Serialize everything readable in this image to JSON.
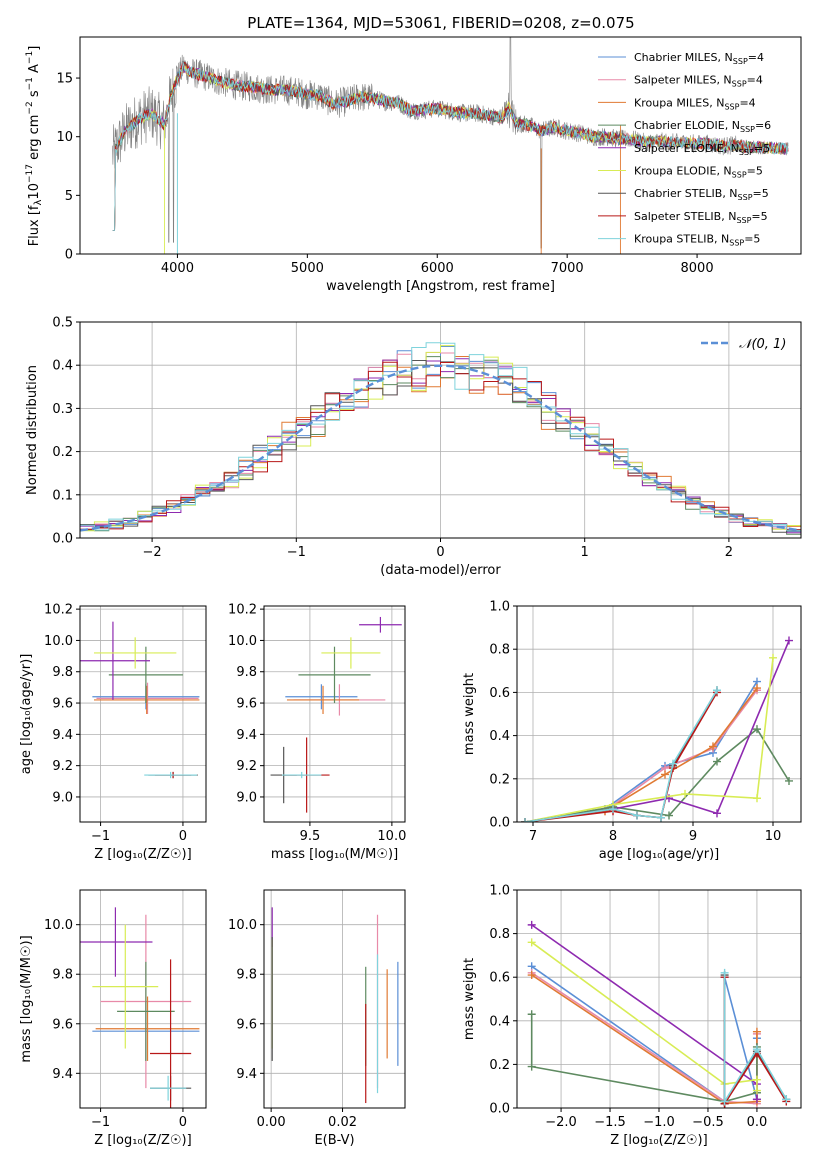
{
  "title": "PLATE=1364, MJD=53061, FIBERID=0208, z=0.075",
  "legend_n_symbol": "N",
  "legend_n_subscript": "SSP",
  "models": [
    {
      "name": "Chabrier MILES",
      "n": "=4",
      "color": "#5b8fd6"
    },
    {
      "name": "Salpeter MILES",
      "n": "=4",
      "color": "#e88aa8"
    },
    {
      "name": "Kroupa MILES",
      "n": "=4",
      "color": "#e07a33"
    },
    {
      "name": "Chabrier ELODIE",
      "n": "=6",
      "color": "#5e8a60"
    },
    {
      "name": "Salpeter ELODIE",
      "n": "=5",
      "color": "#8e2ab0"
    },
    {
      "name": "Kroupa ELODIE",
      "n": "=5",
      "color": "#d8ec55"
    },
    {
      "name": "Chabrier STELIB",
      "n": "=5",
      "color": "#555555"
    },
    {
      "name": "Salpeter STELIB",
      "n": "=5",
      "color": "#b81818"
    },
    {
      "name": "Kroupa STELIB",
      "n": "=5",
      "color": "#7fd3dc"
    }
  ],
  "chart_data": [
    {
      "id": "spectrum",
      "type": "line",
      "xlabel": "wavelength [Angstrom, rest frame]",
      "ylabel_parts": [
        "Flux [f",
        "λ",
        "10",
        "−17",
        " erg cm",
        "−2",
        " s",
        "−1",
        " A",
        "−1",
        "]"
      ],
      "xlim": [
        3250,
        8800
      ],
      "ylim": [
        0,
        18.5
      ],
      "xticks": [
        4000,
        5000,
        6000,
        7000,
        8000
      ],
      "yticks": [
        0,
        5,
        10,
        15
      ],
      "data_color": "#808080",
      "data": {
        "x": [
          3500,
          3600,
          3700,
          3800,
          3900,
          3950,
          4000,
          4050,
          4100,
          4200,
          4300,
          4400,
          4500,
          4600,
          4700,
          4800,
          4900,
          5000,
          5100,
          5200,
          5300,
          5400,
          5500,
          5600,
          5700,
          5800,
          5900,
          6000,
          6100,
          6200,
          6300,
          6400,
          6500,
          6550,
          6600,
          6700,
          6800,
          6900,
          7000,
          7100,
          7200,
          7300,
          7400,
          7500,
          7600,
          7700,
          7800,
          7900,
          8000,
          8100,
          8200,
          8300,
          8400,
          8500,
          8600,
          8700
        ],
        "y": [
          8.5,
          10.5,
          11.5,
          12.0,
          11.0,
          13.5,
          15.0,
          16.0,
          15.5,
          15.2,
          14.8,
          14.5,
          14.3,
          14.2,
          14.0,
          14.0,
          13.9,
          13.6,
          13.5,
          12.8,
          13.0,
          13.4,
          13.3,
          13.0,
          12.9,
          12.2,
          12.3,
          12.4,
          12.2,
          12.0,
          12.0,
          11.8,
          11.6,
          12.5,
          11.2,
          11.0,
          10.5,
          10.8,
          10.5,
          10.3,
          10.0,
          10.0,
          9.8,
          9.8,
          9.5,
          9.6,
          9.5,
          9.5,
          9.4,
          9.4,
          9.2,
          9.3,
          9.1,
          9.1,
          9.0,
          9.0
        ]
      }
    },
    {
      "id": "residuals",
      "type": "line",
      "xlabel": "(data-model)/error",
      "ylabel": "Normed distribution",
      "xlim": [
        -2.5,
        2.5
      ],
      "ylim": [
        0,
        0.5
      ],
      "xticks": [
        -2,
        -1,
        0,
        1,
        2
      ],
      "yticks": [
        0.0,
        0.1,
        0.2,
        0.3,
        0.4,
        0.5
      ],
      "legend": "𝒩(0, 1)",
      "gaussian_color": "#5b8fd6"
    },
    {
      "id": "age-vs-Z",
      "type": "scatter",
      "xlabel": "Z [log₁₀(Z/Z☉)]",
      "ylabel": "age  [log₁₀(age/yr)]",
      "xlim": [
        -1.25,
        0.28
      ],
      "ylim": [
        8.84,
        10.22
      ],
      "xticks": [
        -1,
        0
      ],
      "yticks": [
        9.0,
        9.2,
        9.4,
        9.6,
        9.8,
        10.0,
        10.2
      ],
      "points": [
        {
          "m": 0,
          "x": -0.45,
          "xe": 0.65,
          "y": 9.64,
          "ye": 0.08
        },
        {
          "m": 1,
          "x": -0.43,
          "xe": 0.62,
          "y": 9.63,
          "ye": 0.1
        },
        {
          "m": 2,
          "x": -0.44,
          "xe": 0.64,
          "y": 9.62,
          "ye": 0.09
        },
        {
          "m": 3,
          "x": -0.45,
          "xe": 0.45,
          "y": 9.78,
          "ye": 0.18
        },
        {
          "m": 4,
          "x": -0.85,
          "xe": 0.45,
          "y": 9.87,
          "ye": 0.25
        },
        {
          "m": 5,
          "x": -0.58,
          "xe": 0.5,
          "y": 9.92,
          "ye": 0.1
        },
        {
          "m": 6,
          "x": -0.12,
          "xe": 0.3,
          "y": 9.14,
          "ye": 0.02
        },
        {
          "m": 7,
          "x": -0.12,
          "xe": 0.22,
          "y": 9.14,
          "ye": 0.02
        },
        {
          "m": 8,
          "x": -0.15,
          "xe": 0.32,
          "y": 9.14,
          "ye": 0.02
        }
      ]
    },
    {
      "id": "age-vs-mass",
      "type": "scatter",
      "xlabel": "mass [log₁₀(M/M☉)]",
      "ylabel": "",
      "xlim": [
        9.22,
        10.08
      ],
      "ylim": [
        8.84,
        10.22
      ],
      "xticks": [
        9.5,
        10.0
      ],
      "yticks": [
        9.0,
        9.2,
        9.4,
        9.6,
        9.8,
        10.0,
        10.2
      ],
      "points": [
        {
          "m": 0,
          "x": 9.57,
          "xe": 0.22,
          "y": 9.64,
          "ye": 0.08
        },
        {
          "m": 1,
          "x": 9.68,
          "xe": 0.28,
          "y": 9.62,
          "ye": 0.1
        },
        {
          "m": 2,
          "x": 9.58,
          "xe": 0.22,
          "y": 9.62,
          "ye": 0.09
        },
        {
          "m": 3,
          "x": 9.65,
          "xe": 0.22,
          "y": 9.78,
          "ye": 0.18
        },
        {
          "m": 4,
          "x": 9.93,
          "xe": 0.13,
          "y": 10.1,
          "ye": 0.05
        },
        {
          "m": 5,
          "x": 9.75,
          "xe": 0.18,
          "y": 9.92,
          "ye": 0.1
        },
        {
          "m": 6,
          "x": 9.34,
          "xe": 0.08,
          "y": 9.14,
          "ye": 0.18
        },
        {
          "m": 7,
          "x": 9.48,
          "xe": 0.14,
          "y": 9.14,
          "ye": 0.24
        },
        {
          "m": 8,
          "x": 9.45,
          "xe": 0.12,
          "y": 9.14,
          "ye": 0.02
        }
      ]
    },
    {
      "id": "weight-vs-age",
      "type": "line",
      "xlabel": "age  [log₁₀(age/yr)]",
      "ylabel": "mass weight",
      "xlim": [
        6.8,
        10.35
      ],
      "ylim": [
        0,
        1.0
      ],
      "xticks": [
        7,
        8,
        9,
        10
      ],
      "yticks": [
        0.0,
        0.2,
        0.4,
        0.6,
        0.8,
        1.0
      ],
      "series": [
        {
          "m": 0,
          "x": [
            6.9,
            7.9,
            8.65,
            9.25,
            9.8
          ],
          "y": [
            0.0,
            0.06,
            0.26,
            0.32,
            0.65
          ]
        },
        {
          "m": 1,
          "x": [
            6.9,
            7.9,
            8.65,
            9.25,
            9.8
          ],
          "y": [
            0.0,
            0.05,
            0.25,
            0.34,
            0.61
          ]
        },
        {
          "m": 2,
          "x": [
            6.9,
            7.9,
            8.65,
            9.25,
            9.8
          ],
          "y": [
            0.0,
            0.05,
            0.22,
            0.35,
            0.62
          ]
        },
        {
          "m": 3,
          "x": [
            6.9,
            8.0,
            8.7,
            9.3,
            9.8,
            10.2
          ],
          "y": [
            0.0,
            0.07,
            0.03,
            0.28,
            0.43,
            0.19
          ]
        },
        {
          "m": 4,
          "x": [
            6.9,
            8.0,
            8.7,
            9.3,
            10.2
          ],
          "y": [
            0.0,
            0.06,
            0.11,
            0.04,
            0.84
          ]
        },
        {
          "m": 5,
          "x": [
            6.9,
            8.0,
            8.9,
            9.8,
            10.0
          ],
          "y": [
            0.0,
            0.08,
            0.13,
            0.11,
            0.76
          ]
        },
        {
          "m": 6,
          "x": [
            6.9,
            8.0,
            8.3,
            8.6,
            8.75,
            9.3
          ],
          "y": [
            0.0,
            0.06,
            0.03,
            0.02,
            0.26,
            0.61
          ]
        },
        {
          "m": 7,
          "x": [
            6.9,
            8.0,
            8.3,
            8.6,
            8.75,
            9.3
          ],
          "y": [
            0.0,
            0.05,
            0.03,
            0.02,
            0.25,
            0.6
          ]
        },
        {
          "m": 8,
          "x": [
            6.9,
            8.0,
            8.3,
            8.6,
            8.75,
            9.3
          ],
          "y": [
            0.0,
            0.06,
            0.03,
            0.02,
            0.27,
            0.61
          ]
        }
      ]
    },
    {
      "id": "mass-vs-Z",
      "type": "scatter",
      "xlabel": "Z [log₁₀(Z/Z☉)]",
      "ylabel": "mass [log₁₀(M/M☉)]",
      "xlim": [
        -1.25,
        0.28
      ],
      "ylim": [
        9.26,
        10.14
      ],
      "xticks": [
        -1,
        0
      ],
      "yticks": [
        9.4,
        9.6,
        9.8,
        10.0
      ],
      "points": [
        {
          "m": 0,
          "x": -0.45,
          "xe": 0.65,
          "y": 9.57,
          "ye": 0.12
        },
        {
          "m": 1,
          "x": -0.45,
          "xe": 0.55,
          "y": 9.69,
          "ye": 0.35
        },
        {
          "m": 2,
          "x": -0.43,
          "xe": 0.63,
          "y": 9.58,
          "ye": 0.13
        },
        {
          "m": 3,
          "x": -0.45,
          "xe": 0.35,
          "y": 9.65,
          "ye": 0.2
        },
        {
          "m": 4,
          "x": -0.82,
          "xe": 0.45,
          "y": 9.93,
          "ye": 0.14
        },
        {
          "m": 5,
          "x": -0.7,
          "xe": 0.4,
          "y": 9.75,
          "ye": 0.25
        },
        {
          "m": 6,
          "x": -0.15,
          "xe": 0.25,
          "y": 9.34,
          "ye": 0.05
        },
        {
          "m": 7,
          "x": -0.15,
          "xe": 0.25,
          "y": 9.48,
          "ye": 0.38
        },
        {
          "m": 8,
          "x": -0.18,
          "xe": 0.22,
          "y": 9.34,
          "ye": 0.05
        }
      ]
    },
    {
      "id": "mass-vs-EBV",
      "type": "scatter",
      "xlabel": "E(B-V)",
      "ylabel": "",
      "xlim": [
        -0.002,
        0.0375
      ],
      "ylim": [
        9.26,
        10.14
      ],
      "xticks": [
        0.0,
        0.02
      ],
      "yticks": [
        9.4,
        9.6,
        9.8,
        10.0
      ],
      "points": [
        {
          "m": 0,
          "x": 0.0355,
          "y": 9.64,
          "ye": 0.21
        },
        {
          "m": 1,
          "x": 0.0298,
          "y": 9.69,
          "ye": 0.35
        },
        {
          "m": 2,
          "x": 0.0325,
          "y": 9.64,
          "ye": 0.18
        },
        {
          "m": 3,
          "x": 0.0265,
          "y": 9.63,
          "ye": 0.2
        },
        {
          "m": 4,
          "x": 0.0003,
          "y": 9.99,
          "ye": 0.08
        },
        {
          "m": 5,
          "x": 0.0003,
          "y": 9.72,
          "ye": 0.22
        },
        {
          "m": 6,
          "x": 0.0003,
          "y": 9.7,
          "ye": 0.25
        },
        {
          "m": 7,
          "x": 0.0265,
          "y": 9.48,
          "ye": 0.2
        },
        {
          "m": 8,
          "x": 0.0298,
          "y": 9.6,
          "ye": 0.28
        }
      ]
    },
    {
      "id": "weight-vs-Z",
      "type": "line",
      "xlabel": "Z [log₁₀(Z/Z☉)]",
      "ylabel": "mass weight",
      "xlim": [
        -2.45,
        0.45
      ],
      "ylim": [
        0,
        1.0
      ],
      "xticks": [
        -2.0,
        -1.5,
        -1.0,
        -0.5,
        0.0
      ],
      "yticks": [
        0.0,
        0.2,
        0.4,
        0.6,
        0.8,
        1.0
      ],
      "series": [
        {
          "m": 0,
          "x": [
            -2.3,
            -0.33,
            -0.33,
            0.0,
            0.0
          ],
          "y": [
            0.65,
            0.03,
            0.6,
            0.04,
            0.32
          ]
        },
        {
          "m": 1,
          "x": [
            -2.3,
            -0.33,
            0.0,
            0.0
          ],
          "y": [
            0.62,
            0.03,
            0.02,
            0.34
          ]
        },
        {
          "m": 2,
          "x": [
            -2.3,
            -0.33,
            0.0,
            0.0
          ],
          "y": [
            0.61,
            0.02,
            0.03,
            0.35
          ]
        },
        {
          "m": 3,
          "x": [
            -2.3,
            -2.3,
            -0.33,
            0.0,
            0.0
          ],
          "y": [
            0.43,
            0.19,
            0.03,
            0.07,
            0.28
          ]
        },
        {
          "m": 4,
          "x": [
            -2.3,
            0.0,
            0.0
          ],
          "y": [
            0.84,
            0.11,
            0.04
          ]
        },
        {
          "m": 5,
          "x": [
            -2.3,
            -0.33,
            0.0,
            0.0
          ],
          "y": [
            0.76,
            0.11,
            0.13,
            0.08
          ]
        },
        {
          "m": 6,
          "x": [
            -0.33,
            -0.33,
            0.0,
            0.3
          ],
          "y": [
            0.61,
            0.02,
            0.26,
            0.04
          ]
        },
        {
          "m": 7,
          "x": [
            -0.33,
            -0.33,
            0.0,
            0.3
          ],
          "y": [
            0.6,
            0.02,
            0.25,
            0.03
          ]
        },
        {
          "m": 8,
          "x": [
            -0.33,
            -0.33,
            0.0,
            0.3
          ],
          "y": [
            0.62,
            0.03,
            0.27,
            0.04
          ]
        }
      ]
    }
  ]
}
